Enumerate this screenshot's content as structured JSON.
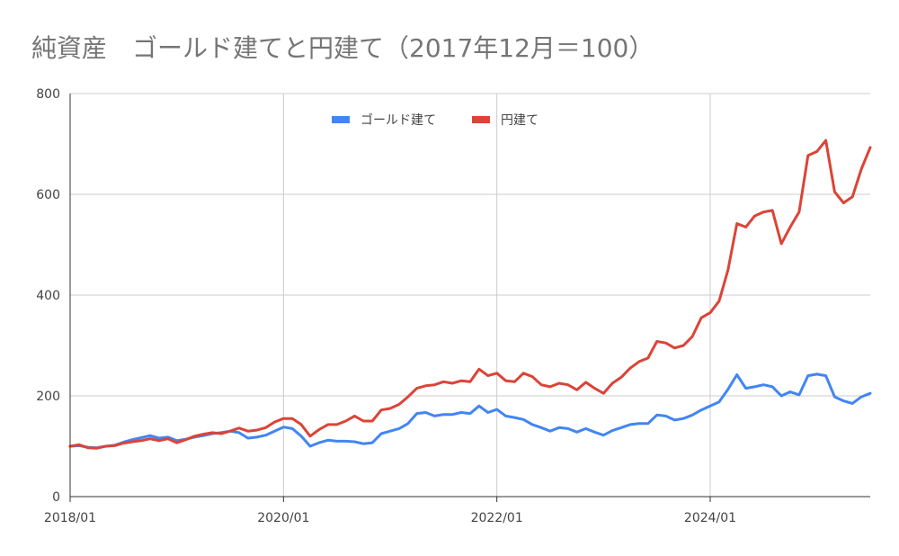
{
  "chart_data": {
    "type": "line",
    "title": "純資産　ゴールド建てと円建て（2017年12月＝100）",
    "xlabel": "",
    "ylabel": "",
    "ylim": [
      0,
      800
    ],
    "y_ticks": [
      0,
      200,
      400,
      600,
      800
    ],
    "x_ticks": [
      "2018/01",
      "2020/01",
      "2022/01",
      "2024/01"
    ],
    "x_start": "2018/01",
    "grid": true,
    "legend_position": "top",
    "series": [
      {
        "name": "ゴールド建て",
        "color": "#4285f4",
        "values": [
          100,
          101,
          98,
          97,
          100,
          102,
          108,
          113,
          117,
          121,
          116,
          118,
          111,
          114,
          118,
          121,
          125,
          127,
          130,
          127,
          116,
          118,
          122,
          130,
          138,
          135,
          120,
          100,
          107,
          112,
          110,
          110,
          109,
          105,
          107,
          125,
          130,
          135,
          145,
          165,
          167,
          160,
          163,
          163,
          167,
          165,
          180,
          167,
          173,
          160,
          157,
          153,
          143,
          137,
          130,
          137,
          135,
          128,
          135,
          128,
          122,
          131,
          137,
          143,
          145,
          145,
          162,
          160,
          152,
          155,
          162,
          172,
          180,
          188,
          213,
          242,
          215,
          218,
          222,
          218,
          200,
          208,
          202,
          240,
          243,
          240,
          198,
          190,
          185,
          198,
          205
        ]
      },
      {
        "name": "円建て",
        "color": "#db4437",
        "values": [
          100,
          103,
          97,
          96,
          100,
          101,
          106,
          109,
          111,
          115,
          111,
          115,
          107,
          113,
          120,
          124,
          127,
          125,
          130,
          136,
          130,
          132,
          137,
          148,
          155,
          155,
          143,
          120,
          133,
          143,
          143,
          150,
          160,
          150,
          150,
          172,
          175,
          183,
          198,
          215,
          220,
          222,
          228,
          225,
          230,
          228,
          253,
          240,
          245,
          230,
          228,
          245,
          238,
          222,
          218,
          225,
          222,
          212,
          227,
          215,
          205,
          225,
          237,
          255,
          268,
          275,
          308,
          305,
          295,
          300,
          318,
          355,
          365,
          388,
          450,
          542,
          535,
          557,
          565,
          568,
          502,
          535,
          565,
          677,
          685,
          707,
          605,
          583,
          595,
          650,
          693
        ]
      }
    ]
  }
}
